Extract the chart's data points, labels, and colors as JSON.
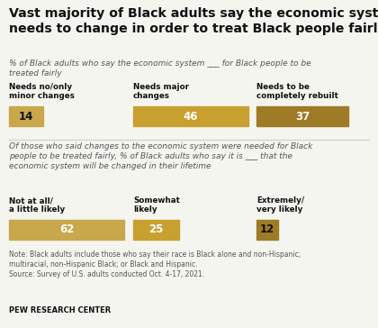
{
  "title": "Vast majority of Black adults say the economic system\nneeds to change in order to treat Black people fairly",
  "subtitle1": "% of Black adults who say the economic system ___ for Black people to be\ntreated fairly",
  "subtitle2": "Of those who said changes to the economic system were needed for Black\npeople to be treated fairly, % of Black adults who say it is ___ that the\neconomic system will be changed in their lifetime",
  "note": "Note: Black adults include those who say their race is Black alone and non-Hispanic;\nmultiracial, non-Hispanic Black; or Black and Hispanic.\nSource: Survey of U.S. adults conducted Oct. 4-17, 2021.",
  "source": "PEW RESEARCH CENTER",
  "section1": {
    "labels": [
      "Needs no/only\nminor changes",
      "Needs major\nchanges",
      "Needs to be\ncompletely rebuilt"
    ],
    "values": [
      14,
      46,
      37
    ],
    "colors": [
      "#c8a84b",
      "#c8a030",
      "#9e7b27"
    ]
  },
  "section2": {
    "labels": [
      "Not at all/\na little likely",
      "Somewhat\nlikely",
      "Extremely/\nvery likely"
    ],
    "values": [
      62,
      25,
      12
    ],
    "colors": [
      "#c8a84b",
      "#c8a030",
      "#9e7b27"
    ]
  },
  "bg_color": "#f5f5f0",
  "title_color": "#111111",
  "subtitle_color": "#555555",
  "note_color": "#555555",
  "label_color": "#111111"
}
